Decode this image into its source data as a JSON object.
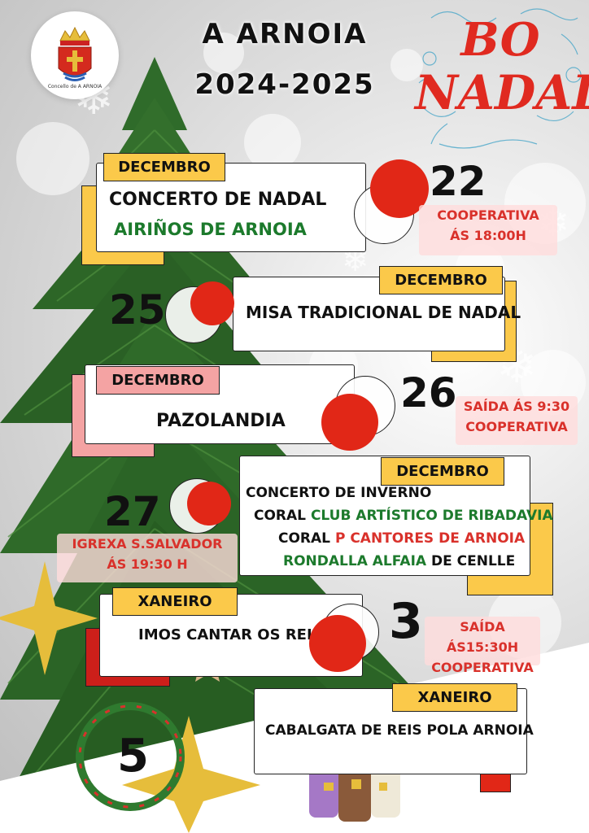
{
  "header": {
    "title_line1": "A ARNOIA",
    "title_line2": "2024-2025",
    "logo_caption": "Concello de A ARNOIA",
    "greeting_line1": "BO",
    "greeting_line2": "NADAL!"
  },
  "events": [
    {
      "month": "DECEMBRO",
      "day": "22",
      "line1": "CONCERTO DE NADAL",
      "line2": "AIRIÑOS DE ARNOIA",
      "info1": "COOPERATIVA",
      "info2": "ÁS 18:00H"
    },
    {
      "month": "DECEMBRO",
      "day": "25",
      "line1": "MISA TRADICIONAL DE NADAL"
    },
    {
      "month": "DECEMBRO",
      "day": "26",
      "line1": "PAZOLANDIA",
      "info1": "SAÍDA ÁS 9:30",
      "info2": "COOPERATIVA"
    },
    {
      "month": "DECEMBRO",
      "day": "27",
      "line1": "CONCERTO DE INVERNO",
      "line2_prefix": "CORAL",
      "line2_green": "CLUB ARTÍSTICO DE RIBADAVIA",
      "line3_prefix": "CORAL",
      "line3_red": "P CANTORES DE ARNOIA",
      "line4_green": "RONDALLA ALFAIA",
      "line4_suffix": "DE CENLLE",
      "info1": "IGREXA S.SALVADOR",
      "info2": "ÁS 19:30 H"
    },
    {
      "month": "XANEIRO",
      "day": "3",
      "line1": "IMOS CANTAR OS REIS",
      "info1": "SAÍDA ÁS15:30H",
      "info2": "COOPERATIVA"
    },
    {
      "month": "XANEIRO",
      "day": "5",
      "line1": "CABALGATA DE REIS POLA ARNOIA"
    }
  ],
  "colors": {
    "yellow": "#fbc94a",
    "pink": "#f4a3a3",
    "red": "#e12717",
    "green": "#1c7a2c"
  }
}
